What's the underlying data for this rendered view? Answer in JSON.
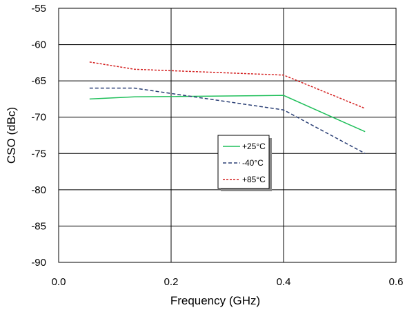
{
  "chart_data": {
    "type": "line",
    "xlabel": "Frequency (GHz)",
    "ylabel": "CSO (dBc)",
    "xlim": [
      0.0,
      0.6
    ],
    "ylim": [
      -90,
      -55
    ],
    "x_ticks": [
      "0.0",
      "0.2",
      "0.4",
      "0.6"
    ],
    "x_tick_values": [
      0.0,
      0.2,
      0.4,
      0.6
    ],
    "y_ticks": [
      "-55",
      "-60",
      "-65",
      "-70",
      "-75",
      "-80",
      "-85",
      "-90"
    ],
    "y_tick_values": [
      -55,
      -60,
      -65,
      -70,
      -75,
      -80,
      -85,
      -90
    ],
    "grid": true,
    "legend_position": "center-right",
    "series": [
      {
        "name": "+25°C",
        "color": "#1fbf5a",
        "dash": "solid",
        "x": [
          0.055,
          0.135,
          0.4,
          0.545
        ],
        "y": [
          -67.5,
          -67.2,
          -67.0,
          -72.0
        ]
      },
      {
        "name": "-40°C",
        "color": "#2a3f75",
        "dash": "dashed",
        "x": [
          0.055,
          0.135,
          0.4,
          0.545
        ],
        "y": [
          -66.0,
          -66.0,
          -69.0,
          -75.0
        ]
      },
      {
        "name": "+85°C",
        "color": "#d42020",
        "dash": "dotted",
        "x": [
          0.055,
          0.135,
          0.4,
          0.545
        ],
        "y": [
          -62.4,
          -63.4,
          -64.2,
          -68.8
        ]
      }
    ]
  }
}
